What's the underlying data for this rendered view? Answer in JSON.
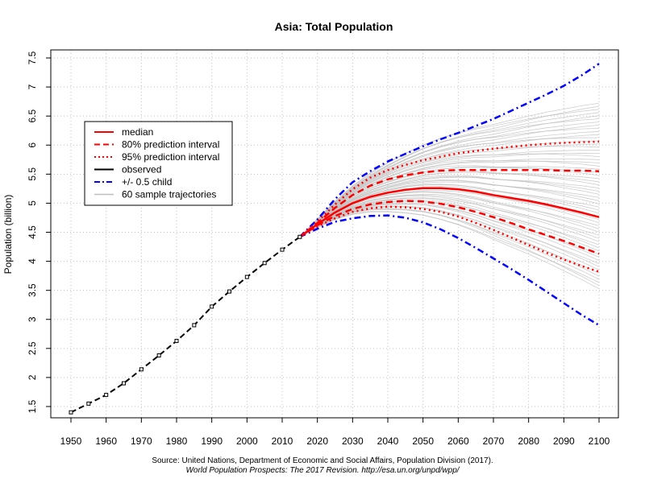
{
  "chart_data": {
    "type": "line",
    "title": "Asia: Total Population",
    "ylabel": "Population (billion)",
    "xlabel": "",
    "xlim": [
      1950,
      2100
    ],
    "ylim": [
      1.5,
      7.5
    ],
    "xticks": [
      1950,
      1960,
      1970,
      1980,
      1990,
      2000,
      2010,
      2020,
      2030,
      2040,
      2050,
      2060,
      2070,
      2080,
      2090,
      2100
    ],
    "yticks": [
      1.5,
      2,
      2.5,
      3,
      3.5,
      4,
      4.5,
      5,
      5.5,
      6,
      6.5,
      7,
      7.5
    ],
    "ytick_labels": [
      "1.5",
      "2",
      "2.5",
      "3",
      "3.5",
      "4",
      "4.5",
      "5",
      "5.5",
      "6",
      "6.5",
      "7",
      "7.5"
    ],
    "grid": true,
    "legend_position": "top-left",
    "legend": [
      {
        "label": "median",
        "color": "#ff0000",
        "style": "solid"
      },
      {
        "label": "80% prediction interval",
        "color": "#ff0000",
        "style": "dashed"
      },
      {
        "label": "95% prediction interval",
        "color": "#ff0000",
        "style": "dotted"
      },
      {
        "label": "observed",
        "color": "#000000",
        "style": "solid"
      },
      {
        "label": "+/- 0.5 child",
        "color": "#0000ff",
        "style": "dashdot"
      },
      {
        "label": "60 sample trajectories",
        "color": "#bebebe",
        "style": "solid"
      }
    ],
    "observed": {
      "x": [
        1950,
        1955,
        1960,
        1965,
        1970,
        1975,
        1980,
        1985,
        1990,
        1995,
        2000,
        2005,
        2010,
        2015
      ],
      "y": [
        1.4,
        1.55,
        1.7,
        1.9,
        2.14,
        2.38,
        2.63,
        2.9,
        3.22,
        3.48,
        3.73,
        3.97,
        4.2,
        4.42
      ]
    },
    "projection_x": [
      2015,
      2020,
      2025,
      2030,
      2035,
      2040,
      2045,
      2050,
      2055,
      2060,
      2065,
      2070,
      2075,
      2080,
      2085,
      2090,
      2095,
      2100
    ],
    "series": [
      {
        "key": "median",
        "values": [
          4.42,
          4.64,
          4.84,
          5.0,
          5.11,
          5.18,
          5.23,
          5.26,
          5.26,
          5.24,
          5.2,
          5.14,
          5.09,
          5.04,
          4.98,
          4.91,
          4.84,
          4.76
        ]
      },
      {
        "key": "pi80_upper",
        "values": [
          4.42,
          4.66,
          4.92,
          5.14,
          5.3,
          5.41,
          5.48,
          5.53,
          5.56,
          5.57,
          5.57,
          5.57,
          5.57,
          5.57,
          5.57,
          5.56,
          5.56,
          5.55
        ]
      },
      {
        "key": "pi80_lower",
        "values": [
          4.42,
          4.62,
          4.78,
          4.9,
          4.98,
          5.02,
          5.04,
          5.03,
          4.99,
          4.93,
          4.85,
          4.76,
          4.66,
          4.55,
          4.45,
          4.35,
          4.24,
          4.13
        ]
      },
      {
        "key": "pi95_upper",
        "values": [
          4.42,
          4.68,
          4.98,
          5.24,
          5.44,
          5.57,
          5.66,
          5.74,
          5.8,
          5.86,
          5.9,
          5.94,
          5.97,
          6.0,
          6.02,
          6.04,
          6.05,
          6.06
        ]
      },
      {
        "key": "pi95_lower",
        "values": [
          4.42,
          4.6,
          4.74,
          4.85,
          4.91,
          4.94,
          4.93,
          4.9,
          4.85,
          4.77,
          4.66,
          4.54,
          4.41,
          4.28,
          4.15,
          4.03,
          3.92,
          3.82
        ]
      },
      {
        "key": "child_plus",
        "values": [
          4.42,
          4.72,
          5.07,
          5.36,
          5.55,
          5.72,
          5.85,
          5.98,
          6.1,
          6.21,
          6.33,
          6.45,
          6.59,
          6.73,
          6.87,
          7.02,
          7.2,
          7.4
        ]
      },
      {
        "key": "child_minus",
        "values": [
          4.42,
          4.56,
          4.68,
          4.74,
          4.78,
          4.79,
          4.75,
          4.67,
          4.55,
          4.4,
          4.23,
          4.05,
          3.87,
          3.68,
          3.48,
          3.28,
          3.08,
          2.9
        ]
      }
    ],
    "sample_trajectories": {
      "count": 60,
      "color": "#bebebe",
      "y_2100_min": 3.5,
      "y_2100_max": 6.75
    },
    "source_line1": "Source: United Nations, Department of Economic and Social Affairs, Population Division (2017).",
    "source_line2": "World Population Prospects: The 2017 Revision. http://esa.un.org/unpd/wpp/"
  }
}
